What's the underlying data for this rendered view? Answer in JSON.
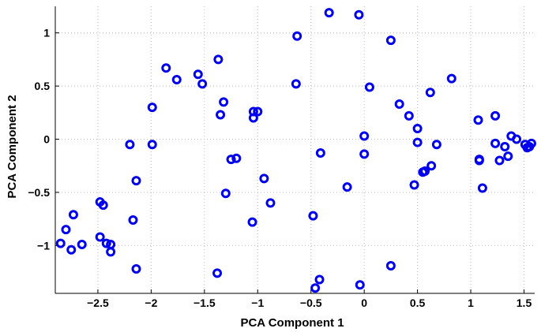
{
  "chart_data": {
    "type": "scatter",
    "xlabel": "PCA Component 1",
    "ylabel": "PCA Component 2",
    "xlim": [
      -2.9,
      1.6
    ],
    "ylim": [
      -1.45,
      1.25
    ],
    "xticks": [
      -2.5,
      -2,
      -1.5,
      -1,
      -0.5,
      0,
      0.5,
      1,
      1.5
    ],
    "xtick_labels": [
      "−2.5",
      "−2",
      "−1.5",
      "−1",
      "−0.5",
      "0",
      "0.5",
      "1",
      "1.5"
    ],
    "yticks": [
      -1,
      -0.5,
      0,
      0.5,
      1
    ],
    "ytick_labels": [
      "−1",
      "−0.5",
      "0",
      "0.5",
      "1"
    ],
    "grid": true,
    "marker": "circle",
    "color": "#0000ee",
    "points": [
      [
        -2.85,
        -0.98
      ],
      [
        -2.8,
        -0.85
      ],
      [
        -2.75,
        -1.04
      ],
      [
        -2.73,
        -0.71
      ],
      [
        -2.65,
        -0.99
      ],
      [
        -2.48,
        -0.59
      ],
      [
        -2.45,
        -0.62
      ],
      [
        -2.48,
        -0.92
      ],
      [
        -2.42,
        -0.98
      ],
      [
        -2.38,
        -0.99
      ],
      [
        -2.38,
        -1.06
      ],
      [
        -2.2,
        -0.05
      ],
      [
        -2.17,
        -0.76
      ],
      [
        -2.14,
        -0.39
      ],
      [
        -2.14,
        -1.22
      ],
      [
        -1.99,
        0.3
      ],
      [
        -1.99,
        -0.05
      ],
      [
        -1.86,
        0.67
      ],
      [
        -1.76,
        0.56
      ],
      [
        -1.56,
        0.61
      ],
      [
        -1.52,
        0.52
      ],
      [
        -1.37,
        0.75
      ],
      [
        -1.35,
        0.23
      ],
      [
        -1.32,
        0.35
      ],
      [
        -1.3,
        -0.51
      ],
      [
        -1.25,
        -0.19
      ],
      [
        -1.2,
        -0.18
      ],
      [
        -1.38,
        -1.26
      ],
      [
        -1.04,
        0.26
      ],
      [
        -1.04,
        0.2
      ],
      [
        -1.0,
        0.26
      ],
      [
        -0.94,
        -0.37
      ],
      [
        -0.88,
        -0.6
      ],
      [
        -1.05,
        -0.78
      ],
      [
        -0.63,
        0.97
      ],
      [
        -0.64,
        0.52
      ],
      [
        -0.48,
        -0.72
      ],
      [
        -0.46,
        -1.4
      ],
      [
        -0.42,
        -1.32
      ],
      [
        -0.41,
        -0.13
      ],
      [
        -0.33,
        1.19
      ],
      [
        -0.16,
        -0.45
      ],
      [
        -0.05,
        1.17
      ],
      [
        -0.04,
        -1.37
      ],
      [
        0.0,
        0.03
      ],
      [
        0.0,
        -0.14
      ],
      [
        0.05,
        0.49
      ],
      [
        0.25,
        0.93
      ],
      [
        0.25,
        -1.19
      ],
      [
        0.33,
        0.33
      ],
      [
        0.42,
        0.22
      ],
      [
        0.47,
        -0.43
      ],
      [
        0.5,
        0.1
      ],
      [
        0.5,
        -0.03
      ],
      [
        0.55,
        -0.31
      ],
      [
        0.57,
        -0.3
      ],
      [
        0.62,
        0.44
      ],
      [
        0.63,
        -0.25
      ],
      [
        0.68,
        -0.05
      ],
      [
        0.82,
        0.57
      ],
      [
        1.07,
        0.18
      ],
      [
        1.08,
        -0.19
      ],
      [
        1.08,
        -0.2
      ],
      [
        1.11,
        -0.46
      ],
      [
        1.23,
        0.22
      ],
      [
        1.23,
        -0.04
      ],
      [
        1.27,
        -0.2
      ],
      [
        1.32,
        -0.07
      ],
      [
        1.35,
        -0.16
      ],
      [
        1.38,
        0.03
      ],
      [
        1.43,
        0.0
      ],
      [
        1.51,
        -0.05
      ],
      [
        1.53,
        -0.08
      ],
      [
        1.55,
        -0.07
      ],
      [
        1.57,
        -0.04
      ]
    ]
  }
}
